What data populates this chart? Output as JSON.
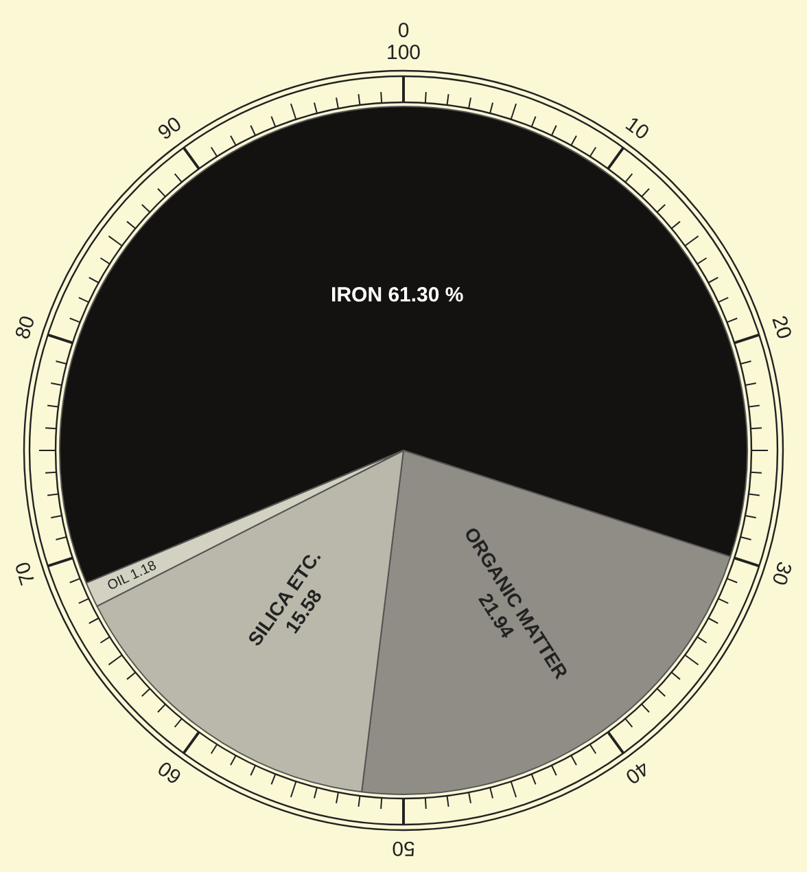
{
  "chart_data": {
    "type": "pie",
    "categories": [
      "IRON",
      "ORGANIC MATTER",
      "SILICA ETC.",
      "OIL"
    ],
    "values": [
      61.3,
      21.94,
      15.58,
      1.18
    ],
    "colors": [
      "#141210",
      "#8f8d86",
      "#b9b8aa",
      "#d3d2c2"
    ],
    "value_labels": [
      "61.30 %",
      "21.94",
      "15.58",
      "1.18"
    ],
    "annotations": [
      "0",
      "10",
      "20",
      "30",
      "40",
      "50",
      "60",
      "70",
      "80",
      "90",
      "100"
    ],
    "legend": false
  }
}
